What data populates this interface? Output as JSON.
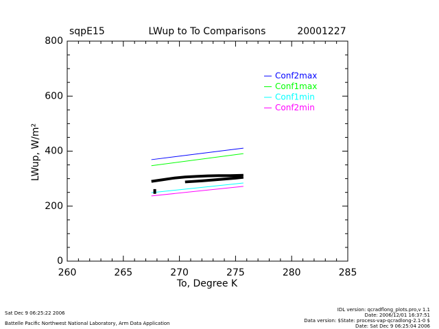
{
  "chart_data": {
    "type": "line",
    "site": "sqpE15",
    "title": "LWup to To Comparisons",
    "date": "20001227",
    "xlabel": "To, Degree K",
    "ylabel": "LWup, W/m²",
    "x": [
      267.5,
      275.7
    ],
    "series": [
      {
        "name": "Conf2max",
        "color": "#0000ff",
        "values": [
          369,
          411
        ]
      },
      {
        "name": "Conf1max",
        "color": "#00ff00",
        "values": [
          347,
          391
        ]
      },
      {
        "name": "Conf1min",
        "color": "#00ffff",
        "values": [
          249,
          284
        ]
      },
      {
        "name": "Conf2min",
        "color": "#ff00ff",
        "values": [
          237,
          272
        ]
      }
    ],
    "points": {
      "color": "#000000",
      "x": [
        267.5,
        268.5,
        269.5,
        270.5,
        271.5,
        272.5,
        273.5,
        274.5,
        275.7,
        null,
        270.5,
        272,
        273.5,
        275,
        275.7,
        null,
        267.8,
        267.8
      ],
      "values": [
        290,
        296,
        302,
        306,
        308,
        310,
        311,
        311,
        312,
        null,
        288,
        292,
        297,
        302,
        305,
        null,
        245,
        262
      ]
    },
    "xlim": [
      260,
      285
    ],
    "xticks": [
      260,
      265,
      270,
      275,
      280,
      285
    ],
    "x_minor_ticks": 5,
    "ylim": [
      0,
      800
    ],
    "yticks": [
      0,
      200,
      400,
      600,
      800
    ],
    "y_minor_ticks": 4,
    "footer_left": [
      "Sat Dec  9 06:25:22 2006",
      "Battelle Pacific Northwest National Laboratory, Arm Data Application"
    ],
    "footer_right": [
      "IDL version: qcradflong_plots.pro,v 1.1",
      "Date: 2006/12/01 16:37:51",
      "Data version: $State: process-vap-qcradlong-2.1-0 $",
      "Date: Sat Dec  9 06:25:04 2006"
    ]
  }
}
